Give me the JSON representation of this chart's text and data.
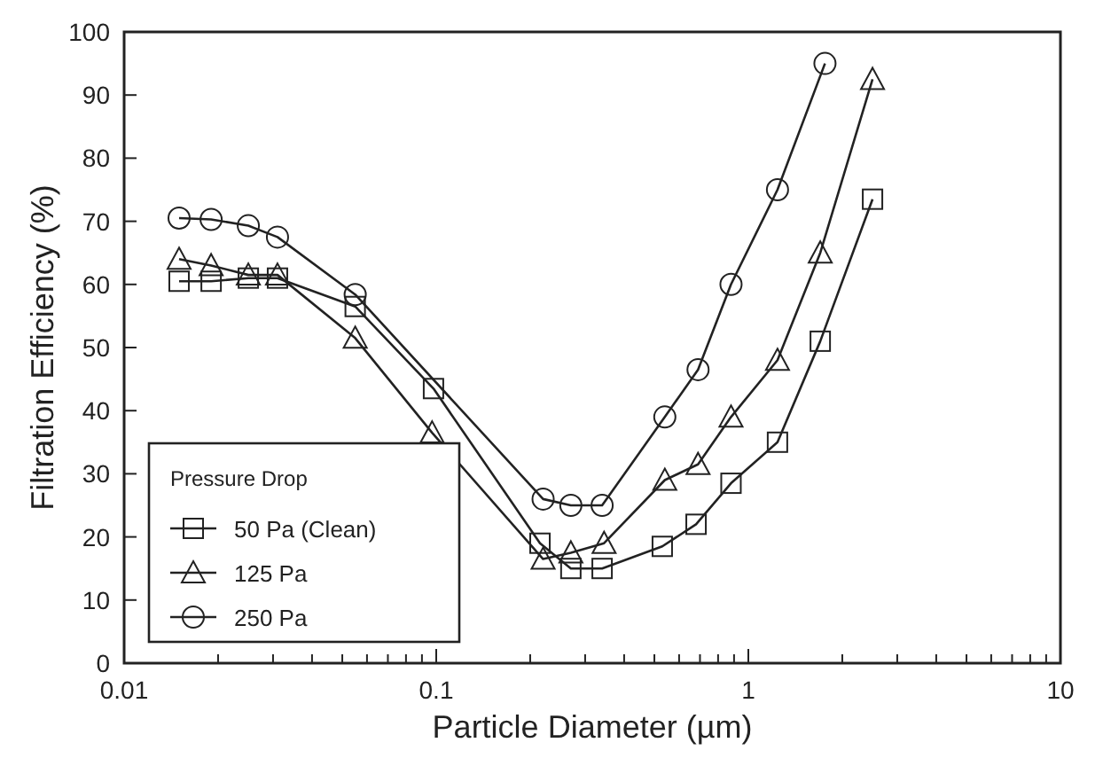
{
  "chart_data": {
    "type": "line",
    "xlabel": "Particle Diameter (µm)",
    "ylabel": "Filtration Efficiency (%)",
    "legend_title": "Pressure Drop",
    "log": "x",
    "grid": false,
    "legend": "bottom left",
    "line_style": "solid",
    "xlim": [
      0.01,
      10
    ],
    "ylim": [
      0,
      100
    ],
    "xticks": [
      0.01,
      {
        "value": 0.02,
        "label": null
      },
      {
        "value": 0.03,
        "label": null
      },
      {
        "value": 0.04,
        "label": null
      },
      {
        "value": 0.05,
        "label": null
      },
      {
        "value": 0.06,
        "label": null
      },
      {
        "value": 0.07,
        "label": null
      },
      {
        "value": 0.08,
        "label": null
      },
      {
        "value": 0.09,
        "label": null
      },
      0.1,
      {
        "value": 0.2,
        "label": null
      },
      {
        "value": 0.3,
        "label": null
      },
      {
        "value": 0.4,
        "label": null
      },
      {
        "value": 0.5,
        "label": null
      },
      {
        "value": 0.6,
        "label": null
      },
      {
        "value": 0.7,
        "label": null
      },
      {
        "value": 0.8,
        "label": null
      },
      {
        "value": 0.9,
        "label": null
      },
      1,
      {
        "value": 2,
        "label": null
      },
      {
        "value": 3,
        "label": null
      },
      {
        "value": 4,
        "label": null
      },
      {
        "value": 5,
        "label": null
      },
      {
        "value": 6,
        "label": null
      },
      {
        "value": 7,
        "label": null
      },
      {
        "value": 8,
        "label": null
      },
      {
        "value": 9,
        "label": null
      },
      10
    ],
    "yticks": [
      0,
      10,
      20,
      30,
      40,
      50,
      60,
      70,
      80,
      90,
      100
    ],
    "series": [
      {
        "name": "50 Pa (Clean)",
        "color": "#222222",
        "marker": "square",
        "x": [
          0.015,
          0.019,
          0.025,
          0.031,
          0.055,
          0.098,
          0.215,
          0.27,
          0.34,
          0.53,
          0.68,
          0.88,
          1.24,
          1.7,
          2.5
        ],
        "values": [
          60.5,
          60.5,
          61,
          61,
          56.5,
          43.5,
          19,
          15,
          15,
          18.5,
          22,
          28.5,
          35,
          51,
          73.5
        ]
      },
      {
        "name": "125 Pa",
        "color": "#222222",
        "marker": "triangle",
        "x": [
          0.015,
          0.019,
          0.025,
          0.031,
          0.055,
          0.097,
          0.22,
          0.27,
          0.345,
          0.54,
          0.69,
          0.88,
          1.24,
          1.7,
          2.5
        ],
        "values": [
          64,
          63,
          61.5,
          61.5,
          51.5,
          36.5,
          16.5,
          17.5,
          19,
          29,
          31.5,
          39,
          48,
          65,
          92.5
        ]
      },
      {
        "name": "250 Pa",
        "color": "#222222",
        "marker": "circle",
        "x": [
          0.015,
          0.019,
          0.025,
          0.031,
          0.055,
          0.22,
          0.27,
          0.34,
          0.54,
          0.69,
          0.88,
          1.24,
          1.76
        ],
        "values": [
          70.5,
          70.3,
          69.3,
          67.5,
          58.4,
          26,
          25,
          25,
          39,
          46.5,
          60,
          75,
          95
        ]
      }
    ]
  }
}
